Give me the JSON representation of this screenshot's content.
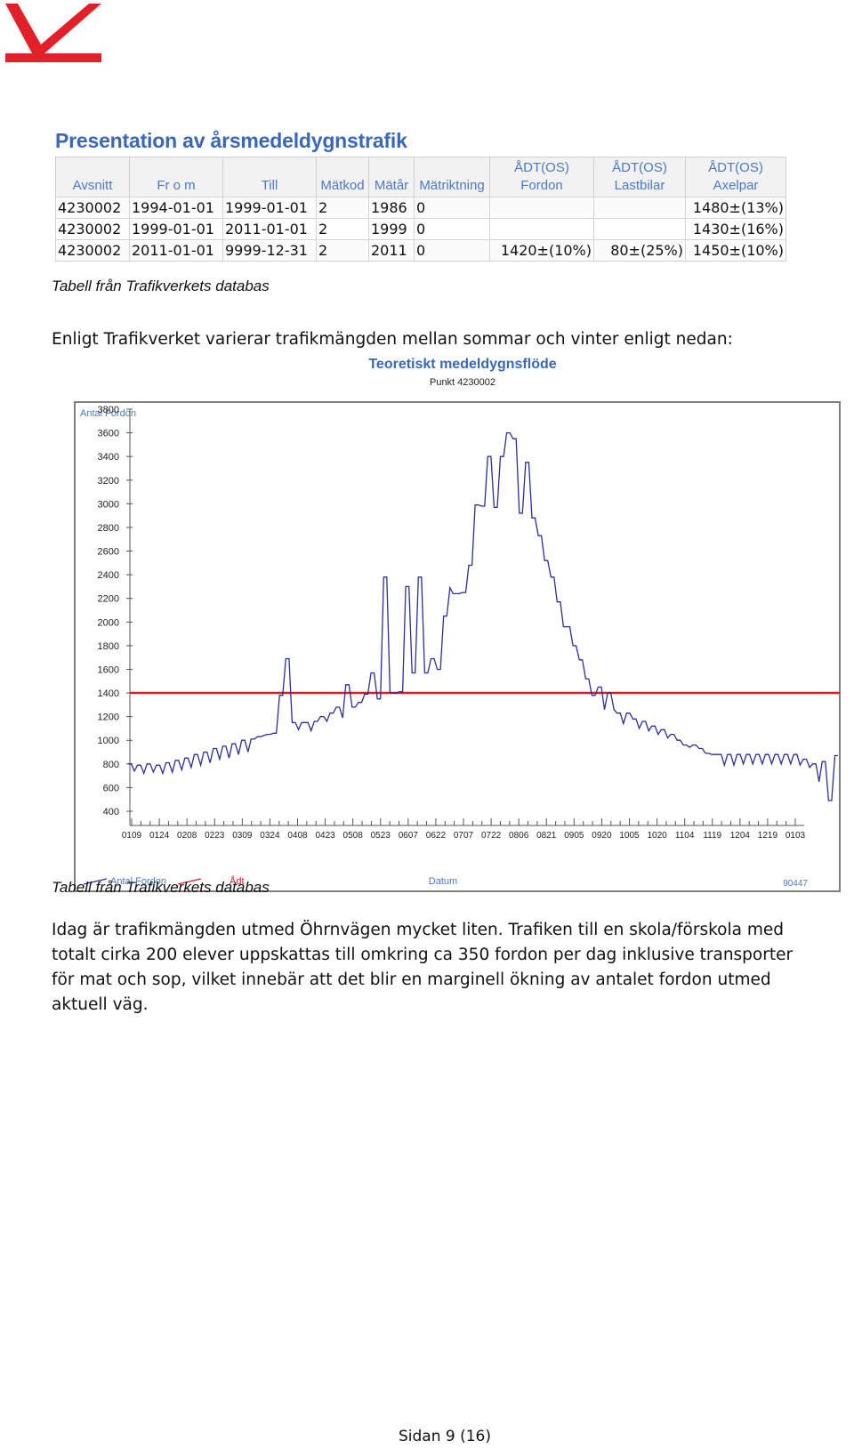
{
  "colors": {
    "logo_red": "#e2202a",
    "title_blue": "#3a67b8",
    "header_blue": "#4d79c2",
    "series_blue": "#2b2f9a",
    "adt_red": "#d81f1f"
  },
  "table": {
    "title": "Presentation av årsmedeldygnstrafik",
    "headers": [
      {
        "top": "",
        "bottom": "Avsnitt"
      },
      {
        "top": "",
        "bottom": "Fr o m"
      },
      {
        "top": "",
        "bottom": "Till"
      },
      {
        "top": "",
        "bottom": "Mätkod"
      },
      {
        "top": "",
        "bottom": "Mätår"
      },
      {
        "top": "",
        "bottom": "Mätriktning"
      },
      {
        "top": "ÅDT(OS)",
        "bottom": "Fordon"
      },
      {
        "top": "ÅDT(OS)",
        "bottom": "Lastbilar"
      },
      {
        "top": "ÅDT(OS)",
        "bottom": "Axelpar"
      }
    ],
    "rows": [
      [
        "4230002",
        "1994-01-01",
        "1999-01-01",
        "2",
        "1986",
        "0",
        "",
        "",
        "1480±(13%)"
      ],
      [
        "4230002",
        "1999-01-01",
        "2011-01-01",
        "2",
        "1999",
        "0",
        "",
        "",
        "1430±(16%)"
      ],
      [
        "4230002",
        "2011-01-01",
        "9999-12-31",
        "2",
        "2011",
        "0",
        "1420±(10%)",
        "80±(25%)",
        "1450±(10%)"
      ]
    ],
    "row1_note": ""
  },
  "caption1": "Tabell från Trafikverkets databas",
  "intro_text": "Enligt Trafikverket varierar trafikmängden mellan sommar och vinter enligt nedan:",
  "chart_data": {
    "type": "line",
    "title": "Teoretiskt medeldygnsflöde",
    "subtitle": "Punkt 4230002",
    "ylabel": "Antal Fordon",
    "xlabel": "Datum",
    "corner_label": "90447",
    "ylim": [
      400,
      3800
    ],
    "yticks": [
      3800,
      3600,
      3400,
      3200,
      3000,
      2800,
      2600,
      2400,
      2200,
      2000,
      1800,
      1600,
      1400,
      1200,
      1000,
      800,
      600,
      400
    ],
    "xticks": [
      "0109",
      "0124",
      "0208",
      "0223",
      "0309",
      "0324",
      "0408",
      "0423",
      "0508",
      "0523",
      "0607",
      "0622",
      "0707",
      "0722",
      "0806",
      "0821",
      "0905",
      "0920",
      "1005",
      "1020",
      "1104",
      "1119",
      "1204",
      "1219",
      "0103"
    ],
    "legend": [
      {
        "name": "Antal Fordon",
        "color": "#2b2f9a"
      },
      {
        "name": "Ådt",
        "color": "#d81f1f"
      }
    ],
    "adt_value": 1400,
    "series": [
      {
        "name": "Antal Fordon",
        "values": [
          800,
          800,
          740,
          790,
          790,
          720,
          800,
          800,
          730,
          790,
          790,
          720,
          810,
          810,
          730,
          830,
          830,
          750,
          850,
          850,
          770,
          880,
          880,
          790,
          900,
          900,
          810,
          930,
          930,
          840,
          950,
          950,
          850,
          970,
          970,
          880,
          1000,
          1000,
          900,
          1010,
          1010,
          1030,
          1030,
          1040,
          1050,
          1050,
          1060,
          1060,
          1380,
          1380,
          1690,
          1690,
          1150,
          1150,
          1090,
          1150,
          1150,
          1150,
          1080,
          1160,
          1160,
          1200,
          1200,
          1160,
          1230,
          1230,
          1280,
          1280,
          1190,
          1470,
          1470,
          1280,
          1280,
          1320,
          1320,
          1390,
          1390,
          1570,
          1570,
          1350,
          1350,
          2380,
          2380,
          1400,
          1400,
          1400,
          1410,
          1410,
          2300,
          2300,
          1570,
          1570,
          2380,
          2380,
          1570,
          1570,
          1690,
          1690,
          1600,
          1600,
          2050,
          2050,
          2290,
          2240,
          2240,
          2240,
          2250,
          2250,
          2480,
          2480,
          2990,
          2990,
          2980,
          2980,
          3400,
          3400,
          2970,
          2970,
          3400,
          3400,
          3600,
          3600,
          3550,
          3550,
          2920,
          2920,
          3350,
          3350,
          2880,
          2880,
          2730,
          2730,
          2520,
          2520,
          2380,
          2380,
          2170,
          2170,
          1960,
          1960,
          1960,
          1800,
          1800,
          1680,
          1680,
          1520,
          1520,
          1380,
          1380,
          1450,
          1450,
          1260,
          1400,
          1400,
          1260,
          1230,
          1230,
          1140,
          1230,
          1230,
          1180,
          1180,
          1100,
          1160,
          1160,
          1080,
          1120,
          1120,
          1050,
          1090,
          1090,
          1020,
          1050,
          1050,
          1000,
          1000,
          960,
          960,
          940,
          960,
          960,
          930,
          930,
          890,
          890,
          880,
          880,
          880,
          880,
          790,
          880,
          880,
          790,
          880,
          880,
          800,
          880,
          880,
          800,
          880,
          880,
          800,
          880,
          880,
          800,
          880,
          880,
          800,
          880,
          880,
          800,
          880,
          880,
          790,
          840,
          840,
          770,
          800,
          800,
          650,
          820,
          820,
          490,
          490,
          870,
          870
        ]
      }
    ]
  },
  "caption2": "Tabell från Trafikverkets databas",
  "body_lines": [
    "Idag är trafikmängden utmed Öhrnvägen mycket liten. Trafiken till en skola/förskola med",
    "totalt cirka 200 elever uppskattas till omkring ca 350 fordon per dag inklusive transporter",
    "för mat och sop, vilket innebär att det blir en marginell ökning av antalet fordon utmed",
    "aktuell väg."
  ],
  "footer": "Sidan 9 (16)"
}
